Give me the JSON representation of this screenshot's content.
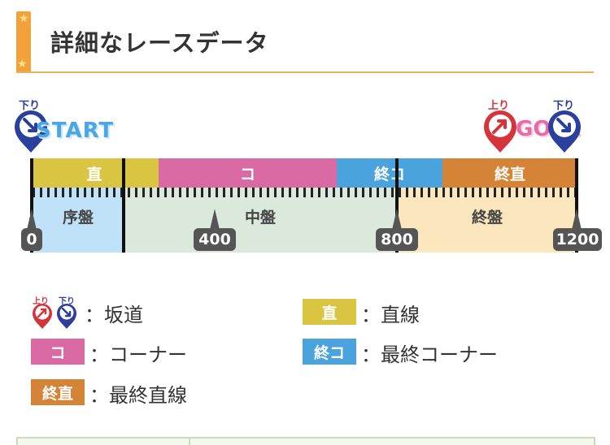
{
  "header": {
    "title": "詳細なレースデータ"
  },
  "markers": {
    "start_slope": "下り",
    "start_label": "START",
    "goal_label": "GOAL",
    "goal_slope_up": "上り",
    "goal_slope_down": "下り"
  },
  "segments": [
    {
      "label": "直",
      "color": "#d9c541"
    },
    {
      "label": "",
      "color": "#d9c541"
    },
    {
      "label": "コ",
      "color": "#d96aa3"
    },
    {
      "label": "終コ",
      "color": "#4aa3dc"
    },
    {
      "label": "終直",
      "color": "#d58336"
    }
  ],
  "phases": [
    {
      "label": "序盤",
      "color": "#bfe2f8"
    },
    {
      "label": "中盤",
      "color": "#dbe8dc"
    },
    {
      "label": "終盤",
      "color": "#fbe6bd"
    }
  ],
  "distances": [
    "0",
    "400",
    "800",
    "1200"
  ],
  "legend": {
    "slope_up_icon": "上り",
    "slope_down_icon": "下り",
    "slope_text": "：坂道",
    "straight_badge": "直",
    "straight_text": "：直線",
    "corner_badge": "コ",
    "corner_text": "：コーナー",
    "final_corner_badge": "終コ",
    "final_corner_text": "：最終コーナー",
    "final_straight_badge": "終直",
    "final_straight_text": "：最終直線"
  }
}
